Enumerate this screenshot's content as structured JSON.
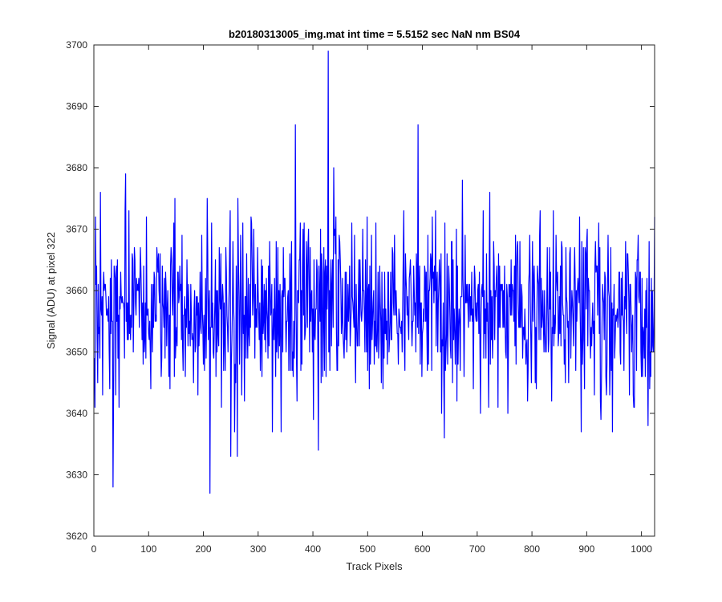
{
  "chart_data": {
    "type": "line",
    "title": "b20180313005_img.mat int time = 5.5152 sec  NaN nm BS04",
    "xlabel": "Track Pixels",
    "ylabel": "Signal (ADU) at pixel 322",
    "xlim": [
      0,
      1024
    ],
    "ylim": [
      3620,
      3700
    ],
    "xticks": [
      0,
      100,
      200,
      300,
      400,
      500,
      600,
      700,
      800,
      900,
      1000
    ],
    "yticks": [
      3620,
      3630,
      3640,
      3650,
      3660,
      3670,
      3680,
      3690,
      3700
    ],
    "grid": false,
    "legend": "none",
    "series": [
      {
        "color": "#0000ff",
        "x_start": 1,
        "x_step": 1,
        "sample_count": 1024,
        "baseline": 3657,
        "noise_std": 7,
        "peaks": [
          {
            "x": 12,
            "y": 3676
          },
          {
            "x": 35,
            "y": 3628
          },
          {
            "x": 58,
            "y": 3679
          },
          {
            "x": 212,
            "y": 3627
          },
          {
            "x": 250,
            "y": 3633
          },
          {
            "x": 262,
            "y": 3633
          },
          {
            "x": 368,
            "y": 3687
          },
          {
            "x": 410,
            "y": 3634
          },
          {
            "x": 428,
            "y": 3699
          },
          {
            "x": 438,
            "y": 3680
          },
          {
            "x": 592,
            "y": 3687
          },
          {
            "x": 640,
            "y": 3636
          },
          {
            "x": 673,
            "y": 3678
          },
          {
            "x": 890,
            "y": 3637
          },
          {
            "x": 1012,
            "y": 3638
          },
          {
            "x": 1024,
            "y": 3672
          }
        ]
      }
    ]
  }
}
